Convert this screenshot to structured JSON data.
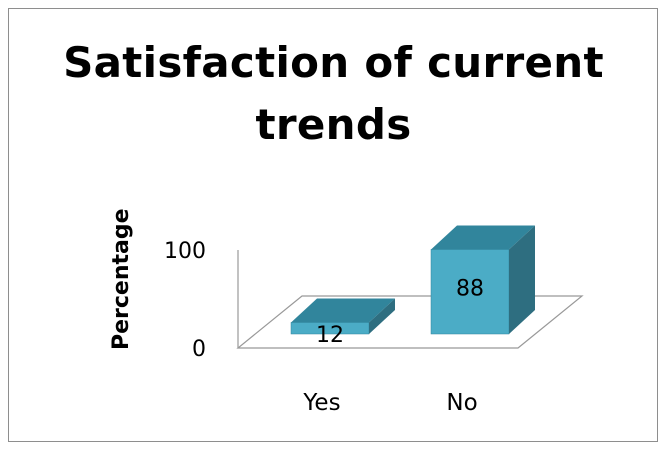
{
  "chart_data": {
    "type": "bar",
    "title_lines": [
      "Satisfaction of current",
      "trends"
    ],
    "ylabel": "Percentage",
    "xlabel": "",
    "categories": [
      "Yes",
      "No"
    ],
    "values": [
      12,
      88
    ],
    "data_labels": [
      "12",
      "88"
    ],
    "yticks": [
      {
        "value": 0,
        "label": "0"
      },
      {
        "value": 100,
        "label": "100"
      }
    ],
    "ylim": [
      0,
      100
    ],
    "bar_style": "3d-column",
    "legend": "none",
    "grid": false,
    "colors": {
      "bar_front": "#4BACC6",
      "bar_top": "#31859C",
      "bar_side": "#2E6E80",
      "axis": "#999999"
    }
  }
}
